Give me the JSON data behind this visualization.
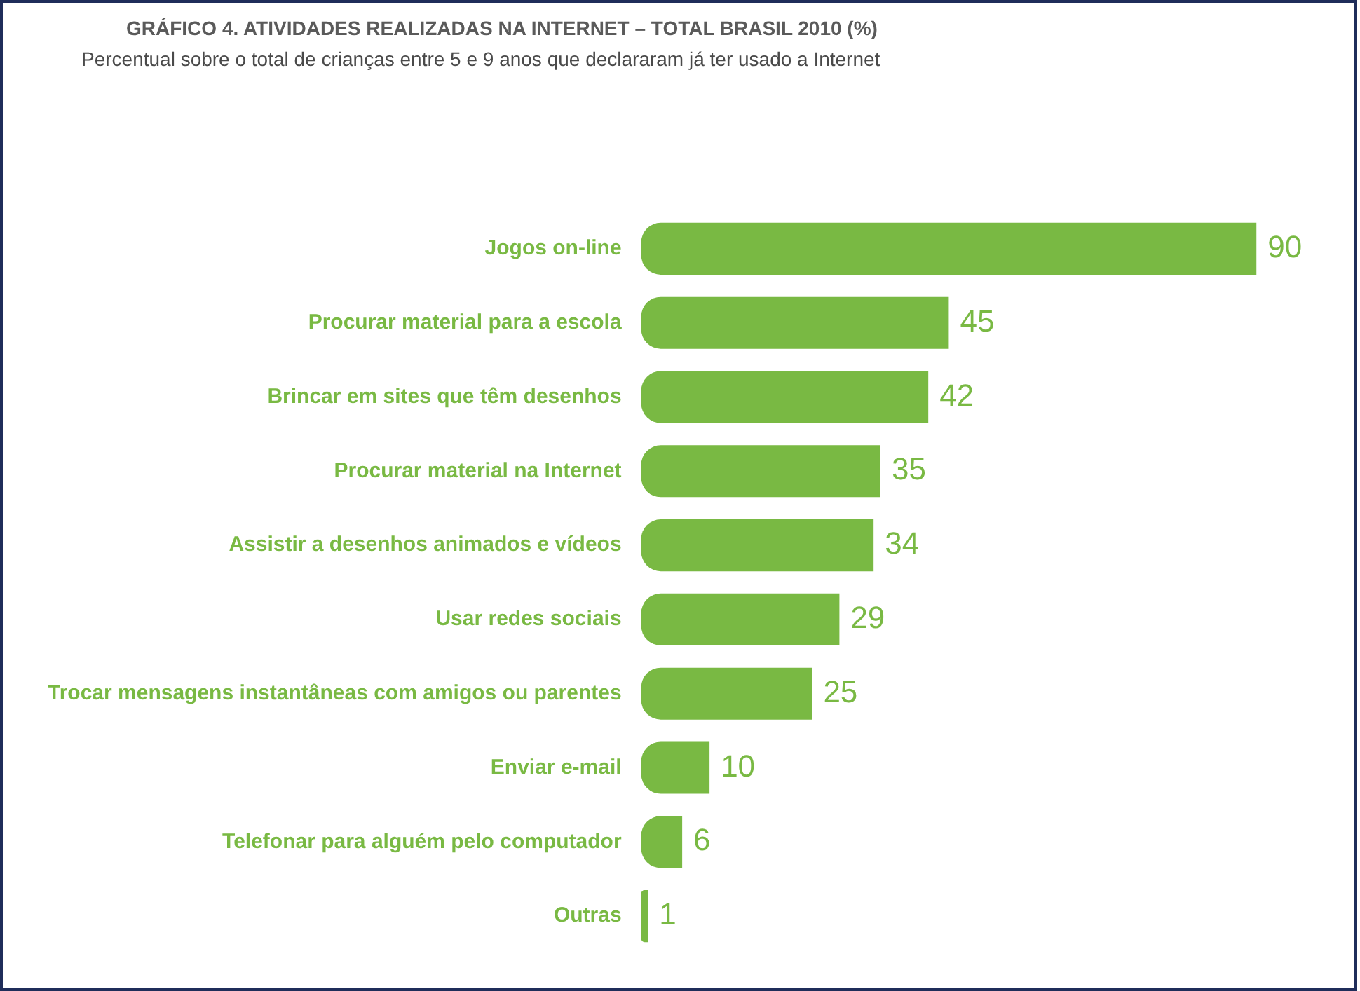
{
  "chart_data": {
    "type": "bar",
    "orientation": "horizontal",
    "title": "GRÁFICO 4. ATIVIDADES REALIZADAS NA INTERNET – TOTAL BRASIL 2010 (%)",
    "subtitle": "Percentual sobre o total de crianças entre 5 e 9 anos que declararam já ter usado a Internet",
    "categories": [
      "Jogos on-line",
      "Procurar material para a escola",
      "Brincar em sites que têm desenhos",
      "Procurar material na Internet",
      "Assistir a desenhos animados e vídeos",
      "Usar redes sociais",
      "Trocar mensagens instantâneas com amigos ou parentes",
      "Enviar e-mail",
      "Telefonar para alguém pelo computador",
      "Outras"
    ],
    "values": [
      90,
      45,
      42,
      35,
      34,
      29,
      25,
      10,
      6,
      1
    ],
    "color": "#79b943",
    "data_labels": true,
    "grid": false,
    "legend": false,
    "tick_labels": "y"
  }
}
